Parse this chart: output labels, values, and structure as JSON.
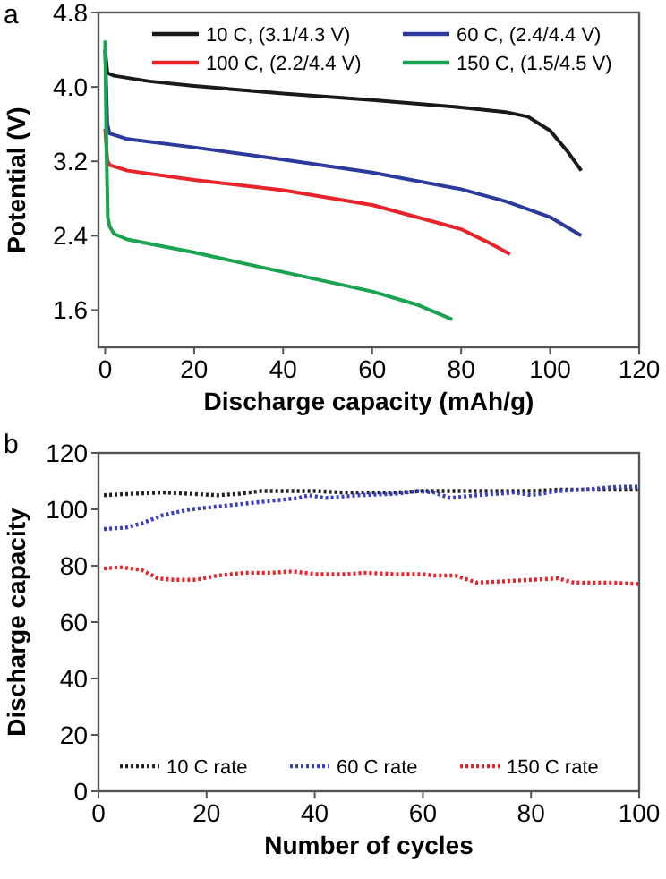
{
  "chart_data": [
    {
      "type": "line",
      "xlabel": "Discharge capacity (mAh/g)",
      "ylabel": "Potential (V)",
      "annotations": [
        "a"
      ],
      "xlim": [
        -1.5,
        120
      ],
      "xticks": [
        0,
        20,
        40,
        60,
        80,
        100,
        120
      ],
      "ylim": [
        1.2,
        4.8
      ],
      "yticks": [
        1.6,
        2.4,
        3.2,
        {
          "value": 4,
          "label": "4.0"
        },
        4.8
      ],
      "grid": false,
      "legend": "top",
      "line_style": "solid",
      "marker": "none",
      "series": [
        {
          "name": "10 C, (3.1/4.3 V)",
          "color": "#1a1a1a",
          "x": [
            0,
            0.5,
            2,
            10,
            20,
            40,
            60,
            80,
            90,
            95,
            100,
            104,
            107
          ],
          "values": [
            4.4,
            4.15,
            4.12,
            4.06,
            4.01,
            3.93,
            3.86,
            3.78,
            3.73,
            3.68,
            3.53,
            3.3,
            3.1
          ]
        },
        {
          "name": "60 C, (2.4/4.4 V)",
          "color": "#2b3a9c",
          "x": [
            0,
            0.5,
            1,
            5,
            20,
            40,
            60,
            80,
            90,
            100,
            107
          ],
          "values": [
            4.4,
            3.6,
            3.5,
            3.44,
            3.35,
            3.22,
            3.08,
            2.9,
            2.77,
            2.6,
            2.4
          ]
        },
        {
          "name": "100 C, (2.2/4.4 V)",
          "color": "#e8232a",
          "x": [
            0,
            0.5,
            1,
            5,
            20,
            40,
            60,
            80,
            86,
            91
          ],
          "values": [
            3.55,
            3.21,
            3.16,
            3.1,
            3.0,
            2.89,
            2.73,
            2.47,
            2.33,
            2.2
          ]
        },
        {
          "name": "150 C, (1.5/4.5 V)",
          "color": "#1aa350",
          "x": [
            0,
            0.3,
            0.6,
            1,
            2,
            5,
            20,
            40,
            60,
            70,
            78
          ],
          "values": [
            4.5,
            3.3,
            2.6,
            2.5,
            2.42,
            2.36,
            2.22,
            2.01,
            1.8,
            1.66,
            1.5
          ]
        }
      ]
    },
    {
      "type": "line",
      "xlabel": "Number of cycles",
      "ylabel": "Discharge capacity",
      "annotations": [
        "b"
      ],
      "xlim": [
        0,
        100
      ],
      "xticks": [
        0,
        20,
        40,
        60,
        80,
        100
      ],
      "ylim": [
        0,
        120
      ],
      "yticks": [
        0,
        20,
        40,
        60,
        80,
        100,
        120
      ],
      "grid": false,
      "legend": "bottom",
      "line_style": "dotted",
      "marker": "none",
      "series": [
        {
          "name": "10 C rate",
          "color": "#222222",
          "x": [
            1,
            6,
            12,
            17,
            22,
            26,
            30,
            36,
            40,
            45,
            50,
            55,
            60,
            65,
            70,
            75,
            80,
            85,
            90,
            95,
            100
          ],
          "values": [
            105,
            105.5,
            106,
            105.5,
            105,
            105.5,
            106.5,
            106.5,
            106.5,
            106,
            106,
            106,
            106.5,
            106.5,
            106.5,
            106.5,
            106.5,
            107,
            107,
            107,
            107
          ]
        },
        {
          "name": "60 C rate",
          "color": "#3a3fc2",
          "x": [
            1,
            5,
            8,
            12,
            17,
            22,
            27,
            32,
            37,
            39,
            42,
            48,
            55,
            59,
            62,
            65,
            70,
            77,
            80,
            85,
            90,
            96,
            100
          ],
          "values": [
            93,
            93.5,
            95,
            98,
            100,
            101,
            102,
            103,
            104,
            105,
            104,
            105,
            105.5,
            106.5,
            106,
            104,
            105,
            106,
            105,
            106.5,
            107,
            108,
            108
          ]
        },
        {
          "name": "150 C rate",
          "color": "#e8232a",
          "x": [
            1,
            4,
            8,
            11,
            14,
            18,
            22,
            27,
            32,
            36,
            40,
            46,
            49,
            55,
            60,
            62,
            66,
            70,
            75,
            80,
            85,
            88,
            95,
            100
          ],
          "values": [
            79,
            79.5,
            78.5,
            75.5,
            75,
            75,
            76.5,
            77.5,
            77.5,
            78,
            77,
            77,
            77.5,
            77,
            77,
            76.5,
            76.5,
            74,
            74.5,
            75,
            75.5,
            74,
            74,
            73.5
          ]
        }
      ]
    }
  ]
}
